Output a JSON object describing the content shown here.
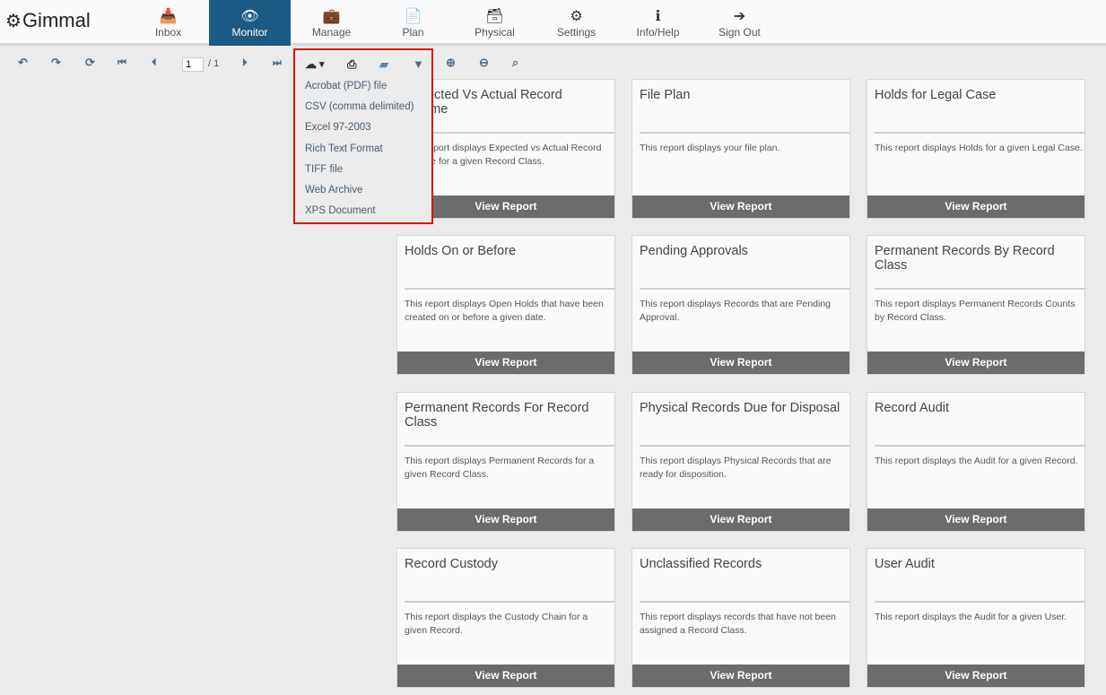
{
  "app": {
    "logo": "Gimmal"
  },
  "nav": [
    {
      "label": "Inbox",
      "icon": "inbox-icon",
      "glyph": "📥"
    },
    {
      "label": "Monitor",
      "icon": "eye-icon",
      "glyph": "👁",
      "active": true
    },
    {
      "label": "Manage",
      "icon": "briefcase-icon",
      "glyph": "💼"
    },
    {
      "label": "Plan",
      "icon": "document-icon",
      "glyph": "📄"
    },
    {
      "label": "Physical",
      "icon": "archive-icon",
      "glyph": "🗃"
    },
    {
      "label": "Settings",
      "icon": "gears-icon",
      "glyph": "⚙"
    },
    {
      "label": "Info/Help",
      "icon": "info-icon",
      "glyph": "ℹ"
    },
    {
      "label": "Sign Out",
      "icon": "sign-out-icon",
      "glyph": "➔"
    }
  ],
  "toolbar": {
    "page_value": "1",
    "page_total": "/ 1",
    "export_caret": "▾"
  },
  "export_menu": [
    "Acrobat (PDF) file",
    "CSV (comma delimited)",
    "Excel 97-2003",
    "Rich Text Format",
    "TIFF file",
    "Web Archive",
    "XPS Document"
  ],
  "button_label": "View Report",
  "reports": [
    {
      "title": "Expected Vs Actual Record Volume",
      "desc": "This report displays Expected vs Actual Record Volume for a given Record Class."
    },
    {
      "title": "File Plan",
      "desc": "This report displays your file plan."
    },
    {
      "title": "Holds for Legal Case",
      "desc": "This report displays Holds for a given Legal Case."
    },
    {
      "title": "Holds On or Before",
      "desc": "This report displays Open Holds that have been created on or before a given date."
    },
    {
      "title": "Pending Approvals",
      "desc": "This report displays Records that are Pending Approval."
    },
    {
      "title": "Permanent Records By Record Class",
      "desc": "This report displays Permanent Records Counts by Record Class."
    },
    {
      "title": "Permanent Records For Record Class",
      "desc": "This report displays Permanent Records for a given Record Class."
    },
    {
      "title": "Physical Records Due for Disposal",
      "desc": "This report displays Physical Records that are ready for disposition."
    },
    {
      "title": "Record Audit",
      "desc": "This report displays the Audit for a given Record."
    },
    {
      "title": "Record Custody",
      "desc": "This report displays the Custody Chain for a given Record."
    },
    {
      "title": "Unclassified Records",
      "desc": "This report displays records that have not been assigned a Record Class."
    },
    {
      "title": "User Audit",
      "desc": "This report displays the Audit for a given User."
    }
  ]
}
